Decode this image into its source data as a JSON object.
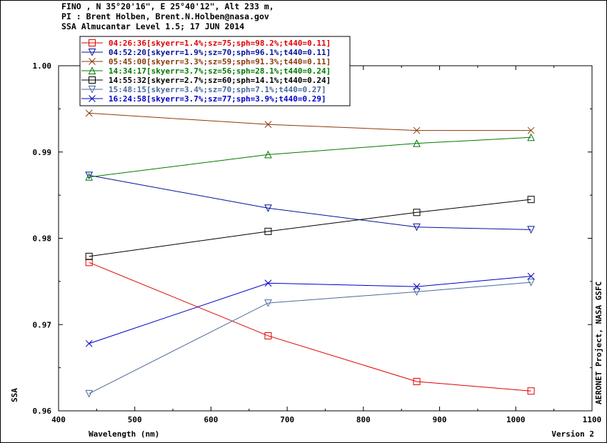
{
  "header": {
    "line1": "FINO , N 35°20'16\", E 25°40'12\", Alt 233 m,",
    "line2": "PI : Brent Holben, Brent.N.Holben@nasa.gov",
    "line3": "SSA Almucantar Level 1.5; 17 JUN 2014"
  },
  "side_note": "AERONET Project, NASA GSFC",
  "version_note": "Version 2",
  "chart_data": {
    "type": "line",
    "xlabel": "Wavelength (nm)",
    "ylabel": "SSA",
    "xlim": [
      400,
      1100
    ],
    "ylim": [
      0.96,
      1.0
    ],
    "xticks": [
      400,
      500,
      600,
      700,
      800,
      900,
      1000,
      1100
    ],
    "yticks": [
      0.96,
      0.97,
      0.98,
      0.99,
      1.0
    ],
    "ytick_labels": [
      "0.96",
      "0.97",
      "0.98",
      "0.99",
      "1.00"
    ],
    "grid": false,
    "legend_position": "top-left",
    "x": [
      440,
      675,
      870,
      1020
    ],
    "series": [
      {
        "name": "04:26:36[skyerr=1.4%;sz=75;sph=98.2%;t440=0.11]",
        "color": "#e00000",
        "marker": "square",
        "values": [
          0.9772,
          0.9687,
          0.9634,
          0.9623
        ]
      },
      {
        "name": "04:52:20[skyerr=1.9%;sz=70;sph=96.1%;t440=0.11]",
        "color": "#00129c",
        "marker": "triangle-down",
        "values": [
          0.9873,
          0.9835,
          0.9813,
          0.981
        ]
      },
      {
        "name": "05:45:00[skyerr=3.3%;sz=59;sph=91.3%;t440=0.11]",
        "color": "#8b3a0a",
        "marker": "x",
        "values": [
          0.9945,
          0.9932,
          0.9925,
          0.9925
        ]
      },
      {
        "name": "14:34:17[skyerr=3.7%;sz=56;sph=28.1%;t440=0.24]",
        "color": "#007a00",
        "marker": "triangle-up",
        "values": [
          0.9871,
          0.9897,
          0.991,
          0.9917
        ]
      },
      {
        "name": "14:55:32[skyerr=2.7%;sz=60;sph=14.1%;t440=0.24]",
        "color": "#000000",
        "marker": "square",
        "values": [
          0.9779,
          0.9808,
          0.983,
          0.9845
        ]
      },
      {
        "name": "15:48:15[skyerr=3.4%;sz=70;sph=7.1%;t440=0.27]",
        "color": "#4a6a9a",
        "marker": "triangle-down",
        "values": [
          0.962,
          0.9725,
          0.9738,
          0.9749
        ]
      },
      {
        "name": "16:24:58[skyerr=3.7%;sz=77;sph=3.9%;t440=0.29]",
        "color": "#0000c8",
        "marker": "x",
        "values": [
          0.9678,
          0.9748,
          0.9744,
          0.9756
        ]
      }
    ]
  }
}
